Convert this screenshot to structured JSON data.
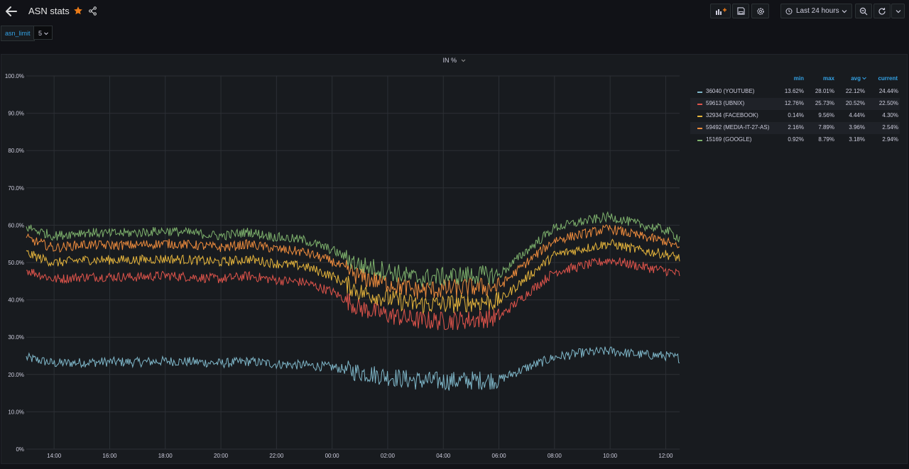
{
  "header": {
    "title": "ASN stats",
    "time_range_label": "Last 24 hours"
  },
  "variables": {
    "asn_limit_label": "asn_limit",
    "asn_limit_value": "5"
  },
  "panel": {
    "title": "IN %"
  },
  "legend": {
    "columns": [
      "min",
      "max",
      "avg",
      "current"
    ],
    "rows": [
      {
        "name": "36040 (YOUTUBE)",
        "color": "#7fb7c9",
        "min": "13.62%",
        "max": "28.01%",
        "avg": "22.12%",
        "current": "24.44%"
      },
      {
        "name": "59613 (UBNIX)",
        "color": "#e0544b",
        "min": "12.76%",
        "max": "25.73%",
        "avg": "20.52%",
        "current": "22.50%"
      },
      {
        "name": "32934 (FACEBOOK)",
        "color": "#e6b53c",
        "min": "0.14%",
        "max": "9.56%",
        "avg": "4.44%",
        "current": "4.30%"
      },
      {
        "name": "59492 (MEDIA-IT-27-AS)",
        "color": "#ef8c3d",
        "min": "2.16%",
        "max": "7.89%",
        "avg": "3.96%",
        "current": "2.54%"
      },
      {
        "name": "15169 (GOOGLE)",
        "color": "#7eb26d",
        "min": "0.92%",
        "max": "8.79%",
        "avg": "3.18%",
        "current": "2.94%"
      }
    ]
  },
  "chart_data": {
    "type": "line",
    "x": [
      "13:00",
      "14:00",
      "15:00",
      "16:00",
      "17:00",
      "18:00",
      "19:00",
      "20:00",
      "21:00",
      "22:00",
      "23:00",
      "00:00",
      "01:00",
      "02:00",
      "03:00",
      "04:00",
      "05:00",
      "06:00",
      "07:00",
      "08:00",
      "09:00",
      "10:00",
      "11:00",
      "12:00",
      "12:30"
    ],
    "x_tick_labels": [
      "14:00",
      "16:00",
      "18:00",
      "20:00",
      "22:00",
      "00:00",
      "02:00",
      "04:00",
      "06:00",
      "08:00",
      "10:00",
      "12:00"
    ],
    "y_tick_labels": [
      "0%",
      "10.0%",
      "20.0%",
      "30.0%",
      "40.0%",
      "50.0%",
      "60.0%",
      "70.0%",
      "80.0%",
      "90.0%",
      "100.0%"
    ],
    "ylim": [
      0,
      100
    ],
    "stacked": true,
    "grid": true,
    "legend_position": "right",
    "series": [
      {
        "name": "36040 (YOUTUBE)",
        "color": "#7fb7c9",
        "values": [
          24.5,
          23.0,
          23.2,
          23.4,
          23.3,
          23.6,
          23.4,
          23.0,
          23.5,
          22.8,
          22.5,
          22.0,
          20.6,
          19.5,
          18.4,
          18.2,
          18.4,
          18.6,
          21.8,
          24.6,
          25.8,
          26.3,
          25.4,
          25.0,
          24.4
        ]
      },
      {
        "name": "59613 (UBNIX)",
        "color": "#e0544b",
        "values": [
          23.5,
          22.5,
          22.9,
          22.8,
          22.8,
          22.9,
          22.7,
          22.6,
          22.9,
          22.5,
          22.2,
          20.2,
          17.2,
          16.5,
          16.2,
          16.1,
          16.3,
          16.7,
          19.8,
          22.9,
          23.3,
          24.4,
          23.7,
          22.8,
          22.5
        ]
      },
      {
        "name": "32934 (FACEBOOK)",
        "color": "#e6b53c",
        "values": [
          4.5,
          4.4,
          4.6,
          4.5,
          4.6,
          4.5,
          4.6,
          4.5,
          4.5,
          4.4,
          4.3,
          4.2,
          4.3,
          4.4,
          4.2,
          4.5,
          4.6,
          4.3,
          4.4,
          4.5,
          4.6,
          4.4,
          4.3,
          4.4,
          4.3
        ]
      },
      {
        "name": "59492 (MEDIA-IT-27-AS)",
        "color": "#ef8c3d",
        "values": [
          4.0,
          4.0,
          4.1,
          3.9,
          4.0,
          4.1,
          4.0,
          3.9,
          4.0,
          3.9,
          3.8,
          3.9,
          4.0,
          4.1,
          3.8,
          4.0,
          4.1,
          3.9,
          4.0,
          4.0,
          3.9,
          4.0,
          3.8,
          3.5,
          2.5
        ]
      },
      {
        "name": "15169 (GOOGLE)",
        "color": "#7eb26d",
        "values": [
          3.0,
          3.2,
          3.3,
          3.2,
          3.3,
          3.4,
          3.2,
          3.1,
          3.3,
          3.2,
          3.2,
          3.1,
          3.2,
          3.3,
          3.2,
          3.4,
          3.3,
          3.1,
          3.2,
          3.3,
          3.4,
          3.2,
          3.1,
          3.0,
          2.9
        ]
      }
    ]
  }
}
